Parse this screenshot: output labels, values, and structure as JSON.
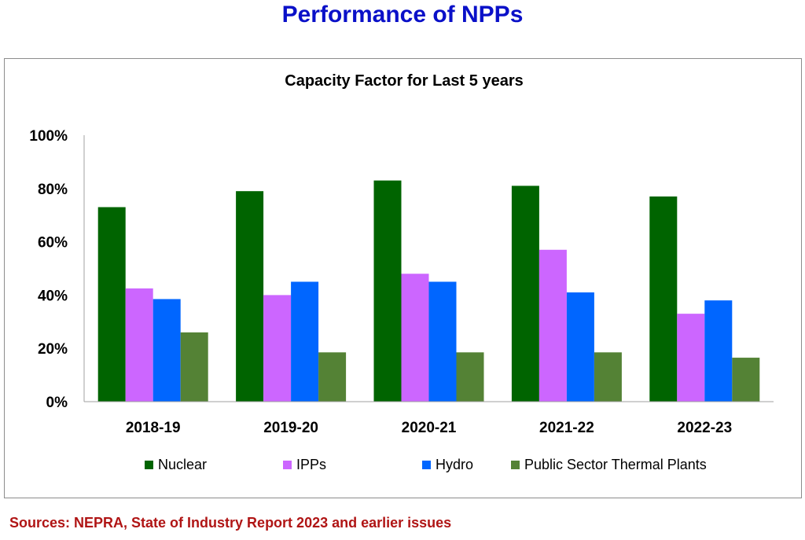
{
  "page": {
    "title": "Performance of NPPs",
    "source": "Sources: NEPRA, State of Industry Report 2023 and earlier issues"
  },
  "colors": {
    "title": "#0a10c8",
    "source": "#b01515"
  },
  "chart_data": {
    "type": "bar",
    "title": "Capacity Factor for Last 5 years",
    "xlabel": "",
    "ylabel": "",
    "categories": [
      "2018-19",
      "2019-20",
      "2020-21",
      "2021-22",
      "2022-23"
    ],
    "series": [
      {
        "name": "Nuclear",
        "color": "#006400",
        "values": [
          73,
          79,
          83,
          81,
          77
        ]
      },
      {
        "name": "IPPs",
        "color": "#cc66ff",
        "values": [
          42.5,
          40,
          48,
          57,
          33
        ]
      },
      {
        "name": "Hydro",
        "color": "#0066ff",
        "values": [
          38.5,
          45,
          45,
          41,
          38
        ]
      },
      {
        "name": "Public Sector Thermal Plants",
        "color": "#548235",
        "values": [
          26,
          18.5,
          18.5,
          18.5,
          16.5
        ]
      }
    ],
    "ylim": [
      0,
      100
    ],
    "yticks": [
      "0%",
      "20%",
      "40%",
      "60%",
      "80%",
      "100%"
    ],
    "grid": false,
    "legend": "bottom"
  }
}
